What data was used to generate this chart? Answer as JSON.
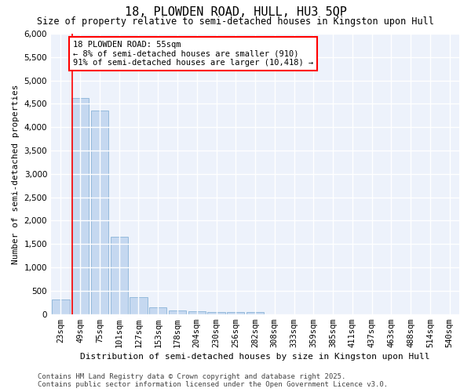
{
  "title": "18, PLOWDEN ROAD, HULL, HU3 5QP",
  "subtitle": "Size of property relative to semi-detached houses in Kingston upon Hull",
  "xlabel": "Distribution of semi-detached houses by size in Kingston upon Hull",
  "ylabel": "Number of semi-detached properties",
  "categories": [
    "23sqm",
    "49sqm",
    "75sqm",
    "101sqm",
    "127sqm",
    "153sqm",
    "178sqm",
    "204sqm",
    "230sqm",
    "256sqm",
    "282sqm",
    "308sqm",
    "333sqm",
    "359sqm",
    "385sqm",
    "411sqm",
    "437sqm",
    "463sqm",
    "488sqm",
    "514sqm",
    "540sqm"
  ],
  "values": [
    310,
    4620,
    4360,
    1650,
    370,
    140,
    80,
    60,
    50,
    50,
    50,
    0,
    0,
    0,
    0,
    0,
    0,
    0,
    0,
    0,
    0
  ],
  "bar_color": "#c5d8f0",
  "bar_edge_color": "#8ab4d8",
  "vline_color": "red",
  "annotation_line1": "18 PLOWDEN ROAD: 55sqm",
  "annotation_line2": "← 8% of semi-detached houses are smaller (910)",
  "annotation_line3": "91% of semi-detached houses are larger (10,418) →",
  "annotation_box_color": "white",
  "annotation_box_edge": "red",
  "ylim": [
    0,
    6000
  ],
  "yticks": [
    0,
    500,
    1000,
    1500,
    2000,
    2500,
    3000,
    3500,
    4000,
    4500,
    5000,
    5500,
    6000
  ],
  "footer_line1": "Contains HM Land Registry data © Crown copyright and database right 2025.",
  "footer_line2": "Contains public sector information licensed under the Open Government Licence v3.0.",
  "background_color": "#ffffff",
  "plot_bg_color": "#edf2fb",
  "grid_color": "white",
  "title_fontsize": 11,
  "subtitle_fontsize": 8.5,
  "axis_label_fontsize": 8,
  "tick_fontsize": 7.5,
  "annotation_fontsize": 7.5,
  "footer_fontsize": 6.5
}
